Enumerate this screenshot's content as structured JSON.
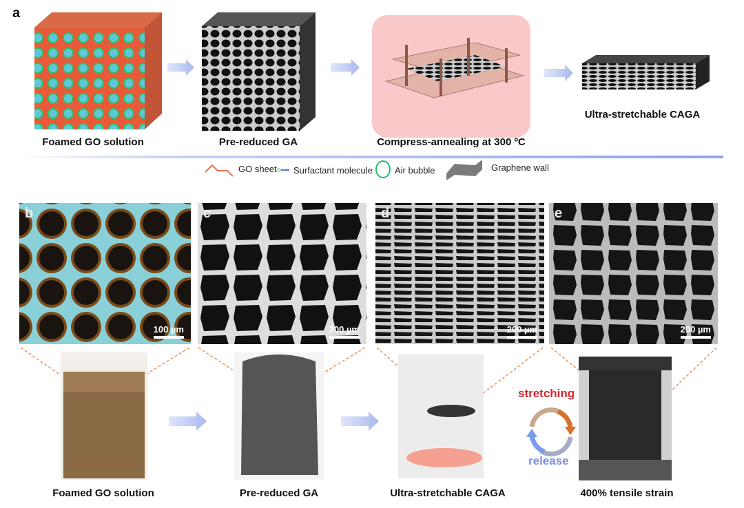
{
  "panel_letters": {
    "a": "a",
    "b": "b",
    "c": "c",
    "d": "d",
    "e": "e"
  },
  "top_row": {
    "labels": [
      "Foamed GO solution",
      "Pre-reduced GA",
      "Compress-annealing at 300 ºC",
      "Ultra-stretchable CAGA"
    ]
  },
  "legend": [
    {
      "label": "GO sheet",
      "icon": "go-sheet-line-icon",
      "color": "#e8704a"
    },
    {
      "label": "Surfactant molecule",
      "icon": "surfactant-molecule-icon",
      "color": "#4a7bd0"
    },
    {
      "label": "Air bubble",
      "icon": "air-bubble-circle-icon",
      "color": "#22c06a"
    },
    {
      "label": "Graphene wall",
      "icon": "graphene-wall-icon",
      "color": "#7a7a7a"
    }
  ],
  "micrographs": [
    {
      "scale": "100 µm"
    },
    {
      "scale": "200 µm"
    },
    {
      "scale": "200 µm"
    },
    {
      "scale": "200 µm"
    }
  ],
  "bottom_row": {
    "labels": [
      "Foamed GO solution",
      "Pre-reduced GA",
      "Ultra-stretchable CAGA",
      "400% tensile strain"
    ],
    "cycle": {
      "stretching": "stretching",
      "release": "release",
      "stretching_color": "#d9252a",
      "release_color": "#7b8ef0"
    }
  },
  "colors": {
    "arrow": "#a9b9ee",
    "divider": "#8fa3e8",
    "zoom_lines": "#e07a3a",
    "annealing_glow": "#f9c8c8"
  }
}
